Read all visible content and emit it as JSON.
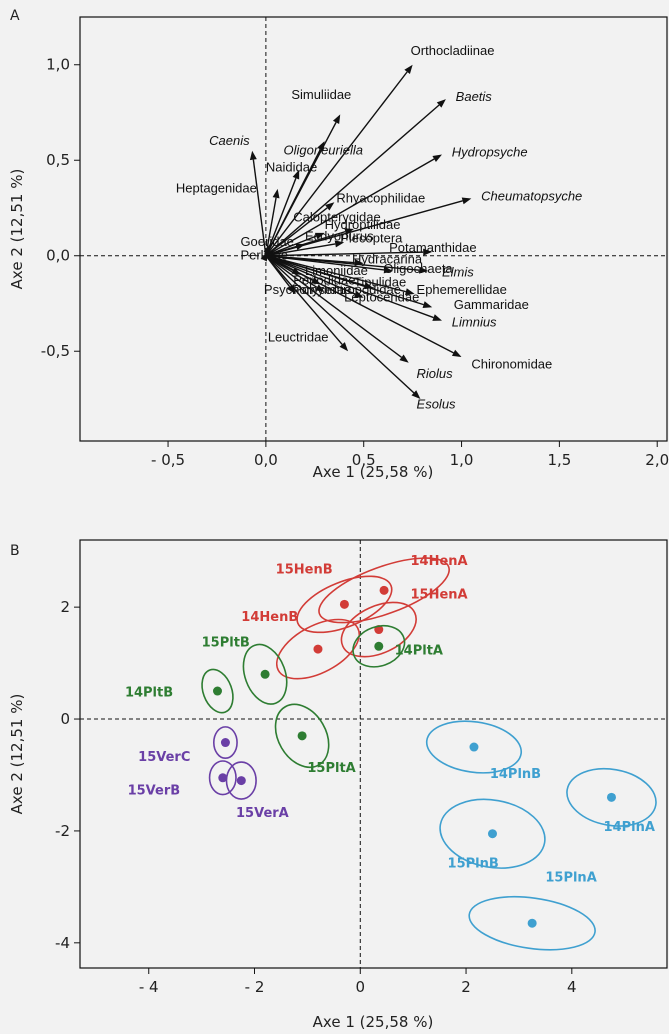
{
  "chart_data": [
    {
      "type": "biplot",
      "panel": "A",
      "xlabel": "Axe 1 (25,58 %)",
      "ylabel": "Axe 2 (12,51 %)",
      "xlim": [
        -0.95,
        2.05
      ],
      "ylim": [
        -0.97,
        1.25
      ],
      "xticks": [
        {
          "v": -0.5,
          "label": "- 0,5"
        },
        {
          "v": 0.0,
          "label": "0,0"
        },
        {
          "v": 0.5,
          "label": "0,5"
        },
        {
          "v": 1.0,
          "label": "1,0"
        },
        {
          "v": 1.5,
          "label": "1,5"
        },
        {
          "v": 2.0,
          "label": "2,0"
        }
      ],
      "yticks": [
        {
          "v": 1.0,
          "label": "1,0"
        },
        {
          "v": 0.5,
          "label": "0,5"
        },
        {
          "v": 0.0,
          "label": "0,0"
        },
        {
          "v": -0.5,
          "label": "-0,5"
        }
      ],
      "vectors": [
        {
          "name": "Orthocladiinae",
          "x": 0.75,
          "y": 1.0,
          "lx": 0.74,
          "ly": 1.05,
          "italic": false
        },
        {
          "name": "Baetis",
          "x": 0.92,
          "y": 0.82,
          "lx": 0.97,
          "ly": 0.81,
          "italic": true
        },
        {
          "name": "Hydropsyche",
          "x": 0.9,
          "y": 0.53,
          "lx": 0.95,
          "ly": 0.52,
          "italic": true
        },
        {
          "name": "Cheumatopsyche",
          "x": 1.05,
          "y": 0.3,
          "lx": 1.1,
          "ly": 0.29,
          "italic": true
        },
        {
          "name": "Simuliidae",
          "x": 0.38,
          "y": 0.74,
          "lx": 0.13,
          "ly": 0.82,
          "italic": false
        },
        {
          "name": "Caenis",
          "x": -0.07,
          "y": 0.55,
          "lx": -0.29,
          "ly": 0.58,
          "italic": true
        },
        {
          "name": "Oligoneuriella",
          "x": 0.3,
          "y": 0.6,
          "lx": 0.09,
          "ly": 0.53,
          "italic": true
        },
        {
          "name": "Naididae",
          "x": 0.17,
          "y": 0.45,
          "lx": 0.0,
          "ly": 0.44,
          "italic": false
        },
        {
          "name": "Heptagenidae",
          "x": 0.06,
          "y": 0.35,
          "lx": -0.46,
          "ly": 0.33,
          "italic": false
        },
        {
          "name": "Rhyacophilidae",
          "x": 0.35,
          "y": 0.28,
          "lx": 0.36,
          "ly": 0.28,
          "italic": false
        },
        {
          "name": "Elmis",
          "x": 0.83,
          "y": -0.08,
          "lx": 0.9,
          "ly": -0.11,
          "italic": true
        },
        {
          "name": "Ephemerellidae",
          "x": 0.76,
          "y": -0.2,
          "lx": 0.77,
          "ly": -0.2,
          "italic": false
        },
        {
          "name": "Gammaridae",
          "x": 0.85,
          "y": -0.27,
          "lx": 0.96,
          "ly": -0.28,
          "italic": false
        },
        {
          "name": "Limnius",
          "x": 0.9,
          "y": -0.34,
          "lx": 0.95,
          "ly": -0.37,
          "italic": true
        },
        {
          "name": "Chironomidae",
          "x": 1.0,
          "y": -0.53,
          "lx": 1.05,
          "ly": -0.59,
          "italic": false
        },
        {
          "name": "Riolus",
          "x": 0.73,
          "y": -0.56,
          "lx": 0.77,
          "ly": -0.64,
          "italic": true
        },
        {
          "name": "Esolus",
          "x": 0.79,
          "y": -0.75,
          "lx": 0.77,
          "ly": -0.8,
          "italic": true
        },
        {
          "name": "Leuctridae",
          "x": 0.42,
          "y": -0.5,
          "lx": 0.01,
          "ly": -0.45,
          "italic": false
        },
        {
          "name": "Leptoceridae",
          "x": 0.5,
          "y": -0.22,
          "lx": 0.4,
          "ly": -0.24,
          "italic": false
        },
        {
          "name": "Calopterygidae",
          "x": 0.3,
          "y": 0.12,
          "lx": 0.14,
          "ly": 0.18,
          "italic": false
        },
        {
          "name": "Plecoptera",
          "x": 0.4,
          "y": 0.07,
          "lx": 0.38,
          "ly": 0.07,
          "italic": false
        },
        {
          "name": "Hydroptilidae",
          "x": 0.45,
          "y": 0.14,
          "lx": 0.3,
          "ly": 0.14,
          "italic": false
        },
        {
          "name": "Potamanthidae",
          "x": 0.85,
          "y": 0.02,
          "lx": 0.63,
          "ly": 0.02,
          "italic": false
        },
        {
          "name": "Hydracarina",
          "x": 0.5,
          "y": -0.04,
          "lx": 0.44,
          "ly": -0.04,
          "italic": false
        },
        {
          "name": "Oligochaeta",
          "x": 0.65,
          "y": -0.08,
          "lx": 0.6,
          "ly": -0.09,
          "italic": false
        },
        {
          "name": "Tipulidae",
          "x": 0.55,
          "y": -0.17,
          "lx": 0.45,
          "ly": -0.16,
          "italic": false
        },
        {
          "name": "Perlodidae",
          "x": 0.28,
          "y": -0.15,
          "lx": 0.14,
          "ly": -0.15,
          "italic": false
        },
        {
          "name": "Polycentropodidae",
          "x": 0.3,
          "y": -0.19,
          "lx": 0.14,
          "ly": -0.2,
          "italic": false
        },
        {
          "name": "Psychomyiidae",
          "x": 0.15,
          "y": -0.2,
          "lx": -0.01,
          "ly": -0.2,
          "italic": false
        },
        {
          "name": "Goeridae",
          "x": 0.02,
          "y": 0.06,
          "lx": -0.13,
          "ly": 0.05,
          "italic": false
        },
        {
          "name": "Perlidae",
          "x": 0.01,
          "y": 0.02,
          "lx": -0.13,
          "ly": -0.02,
          "italic": false
        },
        {
          "name": "Ecdyonurus",
          "x": 0.2,
          "y": 0.06,
          "lx": 0.2,
          "ly": 0.08,
          "italic": false
        },
        {
          "name": "Limoniidae",
          "x": 0.18,
          "y": -0.1,
          "lx": 0.2,
          "ly": -0.1,
          "italic": false
        }
      ]
    },
    {
      "type": "scatter",
      "panel": "B",
      "xlabel": "Axe 1 (25,58 %)",
      "ylabel": "Axe 2 (12,51 %)",
      "xlim": [
        -5.3,
        5.8
      ],
      "ylim": [
        -4.45,
        3.2
      ],
      "xticks": [
        {
          "v": -4,
          "label": "- 4"
        },
        {
          "v": -2,
          "label": "- 2"
        },
        {
          "v": 0,
          "label": "0"
        },
        {
          "v": 2,
          "label": "2"
        },
        {
          "v": 4,
          "label": "4"
        }
      ],
      "yticks": [
        {
          "v": 2,
          "label": "2"
        },
        {
          "v": 0,
          "label": "0"
        },
        {
          "v": -2,
          "label": "-2"
        },
        {
          "v": -4,
          "label": "-4"
        }
      ],
      "groups": [
        {
          "name": "14HenA",
          "x": 0.45,
          "y": 2.3,
          "rx": 1.3,
          "ry": 0.42,
          "rot": 20,
          "color": "#d23c37",
          "lx": 0.95,
          "ly": 2.75
        },
        {
          "name": "15HenB",
          "x": -0.3,
          "y": 2.05,
          "rx": 0.95,
          "ry": 0.4,
          "rot": 22,
          "color": "#d23c37",
          "lx": -1.6,
          "ly": 2.6
        },
        {
          "name": "15HenA",
          "x": 0.35,
          "y": 1.6,
          "rx": 0.75,
          "ry": 0.42,
          "rot": 25,
          "color": "#d23c37",
          "lx": 0.95,
          "ly": 2.15
        },
        {
          "name": "14HenB",
          "x": -0.8,
          "y": 1.25,
          "rx": 0.85,
          "ry": 0.42,
          "rot": 28,
          "color": "#d23c37",
          "lx": -2.25,
          "ly": 1.75
        },
        {
          "name": "14PltA",
          "x": 0.35,
          "y": 1.3,
          "rx": 0.5,
          "ry": 0.35,
          "rot": 20,
          "color": "#2e7d32",
          "lx": 0.65,
          "ly": 1.15
        },
        {
          "name": "15PltB",
          "x": -1.8,
          "y": 0.8,
          "rx": 0.38,
          "ry": 0.55,
          "rot": 20,
          "color": "#2e7d32",
          "lx": -3.0,
          "ly": 1.3
        },
        {
          "name": "14PltB",
          "x": -2.7,
          "y": 0.5,
          "rx": 0.27,
          "ry": 0.4,
          "rot": 20,
          "color": "#2e7d32",
          "lx": -4.45,
          "ly": 0.4
        },
        {
          "name": "15PltA",
          "x": -1.1,
          "y": -0.3,
          "rx": 0.45,
          "ry": 0.6,
          "rot": 30,
          "color": "#2e7d32",
          "lx": -1.0,
          "ly": -0.95
        },
        {
          "name": "15VerC",
          "x": -2.55,
          "y": -0.42,
          "rx": 0.22,
          "ry": 0.28,
          "rot": 0,
          "color": "#6a3fa6",
          "lx": -4.2,
          "ly": -0.75
        },
        {
          "name": "15VerB",
          "x": -2.6,
          "y": -1.05,
          "rx": 0.25,
          "ry": 0.3,
          "rot": 0,
          "color": "#6a3fa6",
          "lx": -4.4,
          "ly": -1.35
        },
        {
          "name": "15VerA",
          "x": -2.25,
          "y": -1.1,
          "rx": 0.28,
          "ry": 0.33,
          "rot": 0,
          "color": "#6a3fa6",
          "lx": -2.35,
          "ly": -1.75
        },
        {
          "name": "14PlnB",
          "x": 2.15,
          "y": -0.5,
          "rx": 0.9,
          "ry": 0.45,
          "rot": -8,
          "color": "#3fa0d0",
          "lx": 2.45,
          "ly": -1.05
        },
        {
          "name": "14PlnA",
          "x": 4.75,
          "y": -1.4,
          "rx": 0.85,
          "ry": 0.5,
          "rot": -10,
          "color": "#3fa0d0",
          "lx": 4.6,
          "ly": -2.0
        },
        {
          "name": "15PlnB",
          "x": 2.5,
          "y": -2.05,
          "rx": 1.0,
          "ry": 0.6,
          "rot": -10,
          "color": "#3fa0d0",
          "lx": 1.65,
          "ly": -2.65
        },
        {
          "name": "15PlnA",
          "x": 3.25,
          "y": -3.65,
          "rx": 1.2,
          "ry": 0.45,
          "rot": -8,
          "color": "#3fa0d0",
          "lx": 3.5,
          "ly": -2.9
        }
      ]
    }
  ]
}
